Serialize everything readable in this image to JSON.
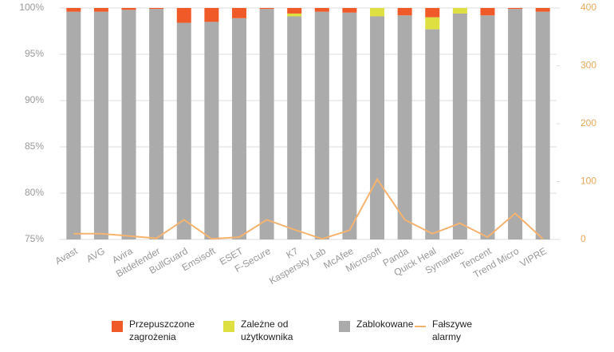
{
  "chart_data": {
    "type": "stacked-bar-line",
    "categories": [
      "Avast",
      "AVG",
      "Avira",
      "Bitdefender",
      "BullGuard",
      "Emsisoft",
      "ESET",
      "F-Secure",
      "K7",
      "Kaspersky Lab",
      "McAfee",
      "Microsoft",
      "Panda",
      "Quick Heal",
      "Symantec",
      "Tencent",
      "Trend Micro",
      "VIPRE"
    ],
    "series": [
      {
        "name": "Zablokowane",
        "color": "#ababab",
        "values": [
          99.6,
          99.6,
          99.8,
          99.9,
          98.4,
          98.5,
          98.9,
          99.9,
          99.1,
          99.6,
          99.5,
          99.1,
          99.2,
          97.7,
          99.4,
          99.2,
          99.9,
          99.6
        ]
      },
      {
        "name": "Zależne od użytkownika",
        "color": "#dde040",
        "values": [
          0,
          0,
          0,
          0,
          0,
          0,
          0,
          0,
          0.3,
          0,
          0,
          0.9,
          0,
          1.3,
          0.6,
          0,
          0,
          0
        ]
      },
      {
        "name": "Przepuszczone zagrożenia",
        "color": "#f05a28",
        "values": [
          0.4,
          0.4,
          0.2,
          0.1,
          1.6,
          1.5,
          1.1,
          0.1,
          0.6,
          0.4,
          0.5,
          0,
          0.8,
          1.0,
          0,
          0.8,
          0.1,
          0.4
        ]
      },
      {
        "name": "Fałszywe alarmy",
        "color": "#f5b370",
        "axis": "y2",
        "values": [
          10,
          10,
          6,
          2,
          34,
          1,
          4,
          34,
          17,
          1,
          16,
          104,
          34,
          10,
          28,
          4,
          45,
          1
        ]
      }
    ],
    "ylim": [
      75,
      100
    ],
    "yticks": [
      {
        "value": 75,
        "label": "75%"
      },
      {
        "value": 80,
        "label": "80%"
      },
      {
        "value": 85,
        "label": "85%"
      },
      {
        "value": 90,
        "label": "90%"
      },
      {
        "value": 95,
        "label": "95%"
      },
      {
        "value": 100,
        "label": "100%"
      }
    ],
    "y2lim": [
      0,
      400
    ],
    "y2ticks": [
      0,
      100,
      200,
      300,
      400
    ],
    "grid": true
  }
}
